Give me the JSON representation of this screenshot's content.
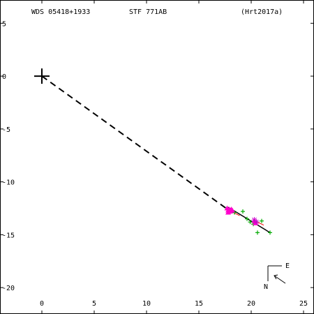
{
  "header": {
    "left": "WDS 05418+1933",
    "center": "STF 771AB",
    "right": "(Hrt2017a)"
  },
  "chart_data": {
    "type": "scatter",
    "title": "",
    "xlabel": "",
    "ylabel": "",
    "xlim": [
      -4,
      26
    ],
    "ylim": [
      -22.5,
      7.2
    ],
    "x_ticks": [
      0,
      5,
      10,
      15,
      20,
      25
    ],
    "y_ticks": [
      5,
      0,
      -5,
      -10,
      -15,
      -20
    ],
    "x_tick_labels": [
      "0",
      "5",
      "10",
      "15",
      "20",
      "25"
    ],
    "y_tick_labels": [
      "5",
      "0",
      "-5",
      "-10",
      "-15",
      "-20"
    ],
    "primary": {
      "x": 0,
      "y": 0
    },
    "dashed_line": {
      "from": [
        0,
        0
      ],
      "to": [
        17.6,
        -12.5
      ]
    },
    "orbit_line": {
      "from": [
        17.8,
        -12.4
      ],
      "to": [
        21.8,
        -14.8
      ]
    },
    "series": [
      {
        "marker": "plus",
        "color": "#00aa00",
        "points": [
          [
            17.9,
            -12.7
          ],
          [
            18.4,
            -12.9
          ],
          [
            19.2,
            -12.8
          ],
          [
            19.6,
            -13.5
          ],
          [
            19.9,
            -13.8
          ],
          [
            20.2,
            -14.0
          ],
          [
            20.5,
            -13.8
          ],
          [
            20.6,
            -14.8
          ],
          [
            21.0,
            -13.7
          ],
          [
            21.8,
            -14.8
          ]
        ]
      },
      {
        "marker": "triangle",
        "color": "#ff00cc",
        "points": [
          [
            17.7,
            -12.5
          ],
          [
            17.8,
            -12.7
          ],
          [
            17.9,
            -12.6
          ],
          [
            18.0,
            -12.8
          ],
          [
            18.1,
            -12.6
          ],
          [
            17.8,
            -12.9
          ],
          [
            18.2,
            -12.7
          ],
          [
            20.3,
            -13.7
          ],
          [
            20.4,
            -13.9
          ]
        ]
      },
      {
        "marker": "star",
        "color": "#cc00cc",
        "points": [
          [
            20.3,
            -13.6
          ],
          [
            20.5,
            -13.8
          ]
        ]
      }
    ],
    "residual_segments": [
      {
        "from": [
          20.2,
          -13.6
        ],
        "to": [
          21.2,
          -14.1
        ],
        "color": "#ff0000"
      },
      {
        "from": [
          18.3,
          -12.9
        ],
        "to": [
          18.9,
          -13.2
        ],
        "color": "#ff0000"
      }
    ],
    "compass": {
      "east": "E",
      "north": "N"
    },
    "colors": {
      "axis": "#000000",
      "line": "#000000",
      "plus_marker": "#00aa00",
      "triangle_marker": "#ff00cc"
    }
  }
}
